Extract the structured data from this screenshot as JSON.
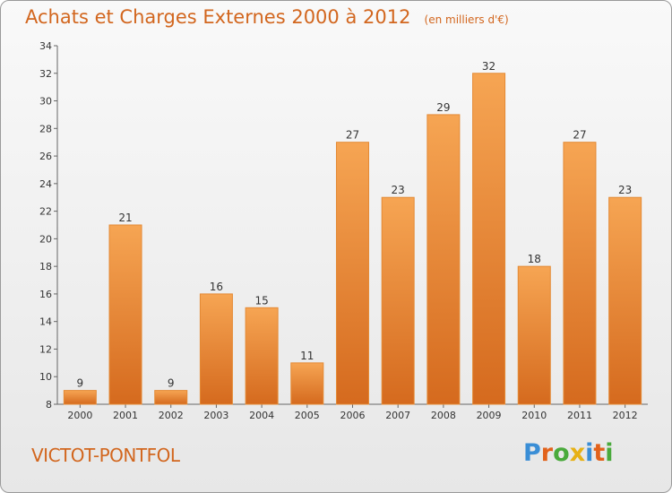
{
  "header": {
    "title": "Achats et Charges Externes 2000 à 2012",
    "subtitle": "(en milliers d'€)"
  },
  "footer": {
    "commune": "VICTOT-PONTFOL",
    "brand_letters": [
      {
        "ch": "P",
        "color": "#3a8ed6"
      },
      {
        "ch": "r",
        "color": "#e2621b"
      },
      {
        "ch": "o",
        "color": "#4aaa3c"
      },
      {
        "ch": "x",
        "color": "#e7b115"
      },
      {
        "ch": "i",
        "color": "#3a8ed6"
      },
      {
        "ch": "t",
        "color": "#e2621b"
      },
      {
        "ch": "i",
        "color": "#4aaa3c"
      }
    ]
  },
  "chart_data": {
    "type": "bar",
    "title": "Achats et Charges Externes 2000 à 2012",
    "subtitle": "(en milliers d'€)",
    "categories": [
      "2000",
      "2001",
      "2002",
      "2003",
      "2004",
      "2005",
      "2006",
      "2007",
      "2008",
      "2009",
      "2010",
      "2011",
      "2012"
    ],
    "values": [
      9,
      21,
      9,
      16,
      15,
      11,
      27,
      23,
      29,
      32,
      18,
      27,
      23
    ],
    "ylim": [
      8,
      34
    ],
    "yticks": [
      8,
      10,
      12,
      14,
      16,
      18,
      20,
      22,
      24,
      26,
      28,
      30,
      32,
      34
    ],
    "grid": false,
    "bar_color": "#f0923a"
  }
}
